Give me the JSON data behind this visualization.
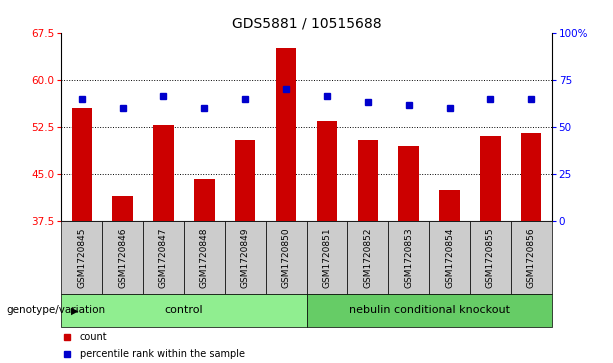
{
  "title": "GDS5881 / 10515688",
  "samples": [
    "GSM1720845",
    "GSM1720846",
    "GSM1720847",
    "GSM1720848",
    "GSM1720849",
    "GSM1720850",
    "GSM1720851",
    "GSM1720852",
    "GSM1720853",
    "GSM1720854",
    "GSM1720855",
    "GSM1720856"
  ],
  "bar_values": [
    55.5,
    41.5,
    52.8,
    44.2,
    50.5,
    65.0,
    53.5,
    50.5,
    49.5,
    42.5,
    51.0,
    51.5
  ],
  "dot_values": [
    57.0,
    55.5,
    57.5,
    55.5,
    57.0,
    58.5,
    57.5,
    56.5,
    56.0,
    55.5,
    57.0,
    57.0
  ],
  "ylim_left": [
    37.5,
    67.5
  ],
  "ylim_right": [
    0,
    100
  ],
  "yticks_left": [
    37.5,
    45.0,
    52.5,
    60.0,
    67.5
  ],
  "yticks_right": [
    0,
    25,
    50,
    75,
    100
  ],
  "ytick_labels_right": [
    "0",
    "25",
    "50",
    "75",
    "100%"
  ],
  "bar_color": "#cc0000",
  "dot_color": "#0000cc",
  "bar_bottom": 37.5,
  "groups": [
    {
      "label": "control",
      "start": 0,
      "end": 6,
      "color": "#90ee90"
    },
    {
      "label": "nebulin conditional knockout",
      "start": 6,
      "end": 12,
      "color": "#66cc66"
    }
  ],
  "group_label": "genotype/variation",
  "legend_items": [
    {
      "color": "#cc0000",
      "label": "count"
    },
    {
      "color": "#0000cc",
      "label": "percentile rank within the sample"
    }
  ],
  "grid_yticks": [
    45.0,
    52.5,
    60.0
  ],
  "title_fontsize": 10,
  "tick_fontsize": 7.5,
  "sample_fontsize": 6.5,
  "group_fontsize": 8
}
